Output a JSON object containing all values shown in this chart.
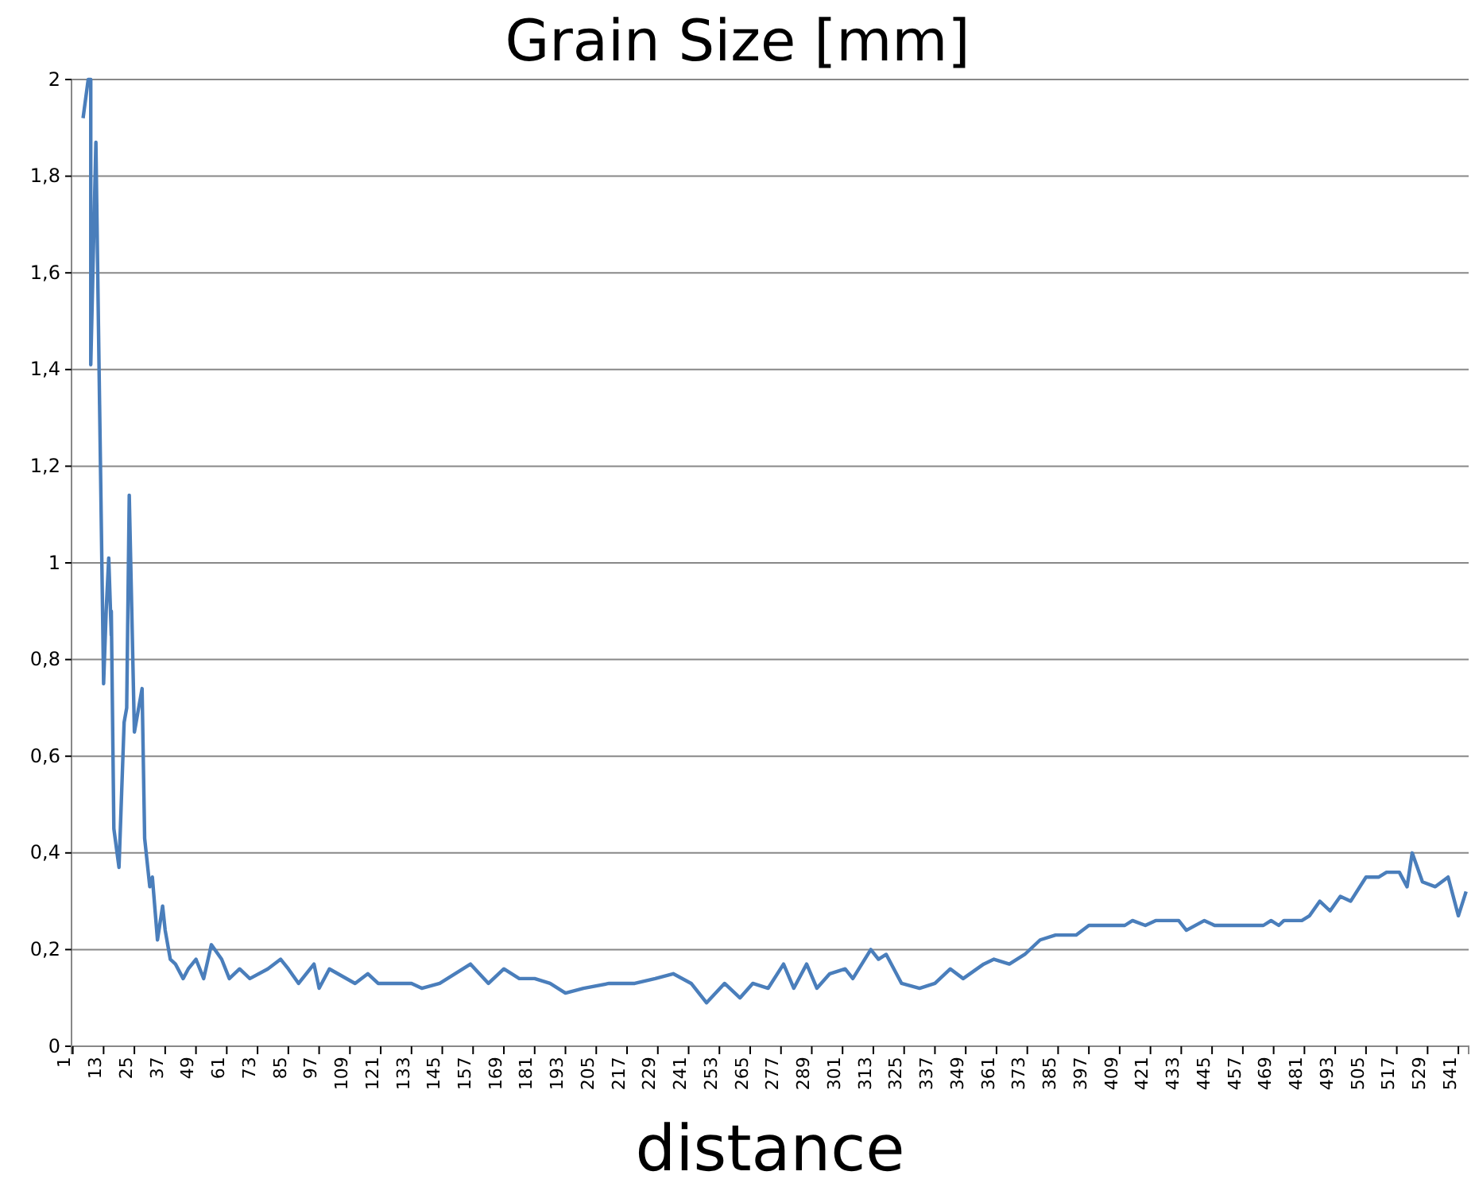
{
  "chart_data": {
    "type": "line",
    "title": "Grain Size [mm]",
    "xlabel": "distance",
    "xlim": [
      0.5,
      545
    ],
    "xticks": [
      1,
      13,
      25,
      37,
      49,
      61,
      73,
      85,
      97,
      109,
      121,
      133,
      145,
      157,
      169,
      181,
      193,
      205,
      217,
      229,
      241,
      253,
      265,
      277,
      289,
      301,
      313,
      325,
      337,
      349,
      361,
      373,
      385,
      397,
      409,
      421,
      433,
      445,
      457,
      469,
      481,
      493,
      505,
      517,
      529,
      541
    ],
    "ylim": [
      0,
      2
    ],
    "yticks": [
      0,
      {
        "value": 0.2,
        "label": "0,2"
      },
      {
        "value": 0.4,
        "label": "0,4"
      },
      {
        "value": 0.6,
        "label": "0,6"
      },
      {
        "value": 0.8,
        "label": "0,8"
      },
      1,
      {
        "value": 1.2,
        "label": "1,2"
      },
      {
        "value": 1.4,
        "label": "1,4"
      },
      {
        "value": 1.6,
        "label": "1,6"
      },
      {
        "value": 1.8,
        "label": "1,8"
      },
      2
    ],
    "grid": "y",
    "marker": "none",
    "line_style": "solid",
    "series": [
      {
        "color": "#4a7ebb",
        "x": [
          5,
          7,
          8,
          8,
          10,
          11,
          13,
          14,
          15,
          16,
          16,
          17,
          19,
          21,
          22,
          23,
          25,
          28,
          29,
          31,
          32,
          34,
          36,
          37,
          39,
          41,
          44,
          46,
          49,
          52,
          55,
          59,
          62,
          66,
          70,
          77,
          82,
          85,
          89,
          95,
          97,
          101,
          111,
          116,
          120,
          133,
          137,
          144,
          156,
          163,
          169,
          175,
          181,
          187,
          193,
          200,
          210,
          220,
          228,
          235,
          242,
          248,
          255,
          261,
          266,
          272,
          278,
          282,
          287,
          291,
          296,
          302,
          305,
          312,
          315,
          318,
          324,
          331,
          337,
          343,
          348,
          356,
          360,
          366,
          372,
          378,
          384,
          392,
          397,
          411,
          414,
          419,
          423,
          432,
          435,
          442,
          446,
          465,
          468,
          471,
          473,
          480,
          483,
          487,
          491,
          495,
          499,
          505,
          510,
          513,
          518,
          521,
          523,
          527,
          532,
          537,
          541,
          544
        ],
        "values": [
          1.92,
          2,
          2,
          1.41,
          1.87,
          1.49,
          0.75,
          0.9,
          1.01,
          0.85,
          0.9,
          0.45,
          0.37,
          0.67,
          0.7,
          1.14,
          0.65,
          0.74,
          0.43,
          0.33,
          0.35,
          0.22,
          0.29,
          0.24,
          0.18,
          0.17,
          0.14,
          0.16,
          0.18,
          0.14,
          0.21,
          0.18,
          0.14,
          0.16,
          0.14,
          0.16,
          0.18,
          0.16,
          0.13,
          0.17,
          0.12,
          0.16,
          0.13,
          0.15,
          0.13,
          0.13,
          0.12,
          0.13,
          0.17,
          0.13,
          0.16,
          0.14,
          0.14,
          0.13,
          0.11,
          0.12,
          0.13,
          0.13,
          0.14,
          0.15,
          0.13,
          0.09,
          0.13,
          0.1,
          0.13,
          0.12,
          0.17,
          0.12,
          0.17,
          0.12,
          0.15,
          0.16,
          0.14,
          0.2,
          0.18,
          0.19,
          0.13,
          0.12,
          0.13,
          0.16,
          0.14,
          0.17,
          0.18,
          0.17,
          0.19,
          0.22,
          0.23,
          0.23,
          0.25,
          0.25,
          0.26,
          0.25,
          0.26,
          0.26,
          0.24,
          0.26,
          0.25,
          0.25,
          0.26,
          0.25,
          0.26,
          0.26,
          0.27,
          0.3,
          0.28,
          0.31,
          0.3,
          0.35,
          0.35,
          0.36,
          0.36,
          0.33,
          0.4,
          0.34,
          0.33,
          0.35,
          0.27,
          0.32
        ]
      }
    ]
  }
}
